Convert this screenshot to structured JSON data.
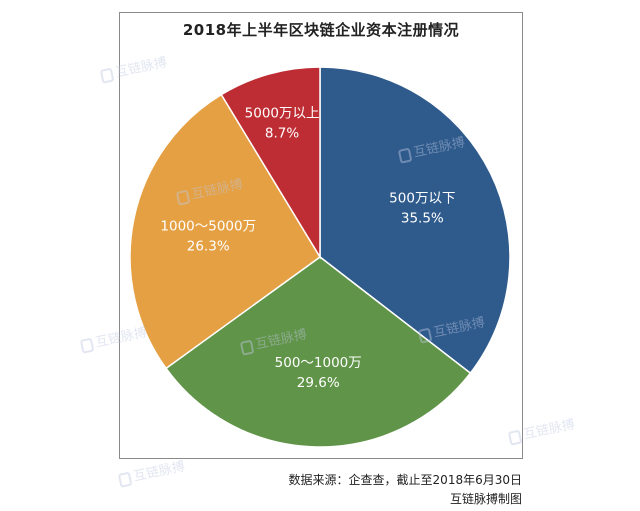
{
  "chart_data": {
    "type": "pie",
    "title": "2018年上半年区块链企业资本注册情况",
    "slices": [
      {
        "label": "500万以下",
        "value": 35.5,
        "value_label": "35.5%",
        "color": "#2e5a8c"
      },
      {
        "label": "500～1000万",
        "value": 29.6,
        "value_label": "29.6%",
        "color": "#609448"
      },
      {
        "label": "1000～5000万",
        "value": 26.3,
        "value_label": "26.3%",
        "color": "#e5a043"
      },
      {
        "label": "5000万以上",
        "value": 8.7,
        "value_label": "8.7%",
        "color": "#bf2d34"
      }
    ],
    "start_angle_deg": 0,
    "direction": "clockwise"
  },
  "watermark": {
    "text": "互链脉搏"
  },
  "footer": {
    "source": "数据来源：企查查，截止至2018年6月30日",
    "credit": "互链脉搏制图"
  },
  "colors": {
    "slice_border": "#ffffff",
    "frame_border": "#8a8a8a"
  }
}
